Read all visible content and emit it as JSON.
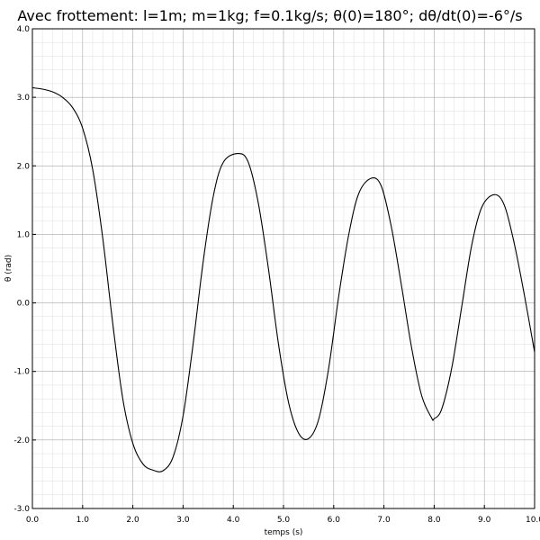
{
  "chart_data": {
    "type": "line",
    "title": "Avec frottement: l=1m; m=1kg; f=0.1kg/s; θ(0)=180°; dθ/dt(0)=-6°/s",
    "xlabel": "temps (s)",
    "ylabel": "θ (rad)",
    "xlim": [
      0,
      10
    ],
    "ylim": [
      -3,
      4
    ],
    "grid": true,
    "x_ticks": [
      "0.0",
      "1.0",
      "2.0",
      "3.0",
      "4.0",
      "5.0",
      "6.0",
      "7.0",
      "8.0",
      "9.0",
      "10.0"
    ],
    "y_ticks": [
      "-3.0",
      "-2.0",
      "-1.0",
      "0.0",
      "1.0",
      "2.0",
      "3.0",
      "4.0"
    ],
    "series": [
      {
        "color": "#000000",
        "x": [
          0.0,
          0.2,
          0.4,
          0.6,
          0.8,
          1.0,
          1.2,
          1.4,
          1.6,
          1.8,
          2.0,
          2.2,
          2.4,
          2.6,
          2.8,
          3.0,
          3.2,
          3.4,
          3.6,
          3.8,
          4.1,
          4.3,
          4.5,
          4.7,
          4.9,
          5.1,
          5.3,
          5.5,
          5.7,
          5.9,
          6.1,
          6.3,
          6.5,
          6.75,
          6.95,
          7.15,
          7.35,
          7.55,
          7.75,
          7.95,
          8.0,
          8.15,
          8.35,
          8.55,
          8.75,
          8.95,
          9.2,
          9.4,
          9.6,
          9.8,
          10.0
        ],
        "y": [
          3.14,
          3.12,
          3.08,
          3.0,
          2.85,
          2.55,
          1.95,
          0.95,
          -0.3,
          -1.4,
          -2.05,
          -2.35,
          -2.44,
          -2.45,
          -2.25,
          -1.65,
          -0.6,
          0.6,
          1.55,
          2.05,
          2.18,
          2.05,
          1.45,
          0.5,
          -0.6,
          -1.45,
          -1.9,
          -1.98,
          -1.7,
          -0.95,
          0.1,
          1.0,
          1.6,
          1.82,
          1.7,
          1.1,
          0.25,
          -0.65,
          -1.35,
          -1.68,
          -1.69,
          -1.55,
          -0.95,
          -0.05,
          0.85,
          1.4,
          1.58,
          1.42,
          0.85,
          0.1,
          -0.72
        ]
      }
    ]
  }
}
